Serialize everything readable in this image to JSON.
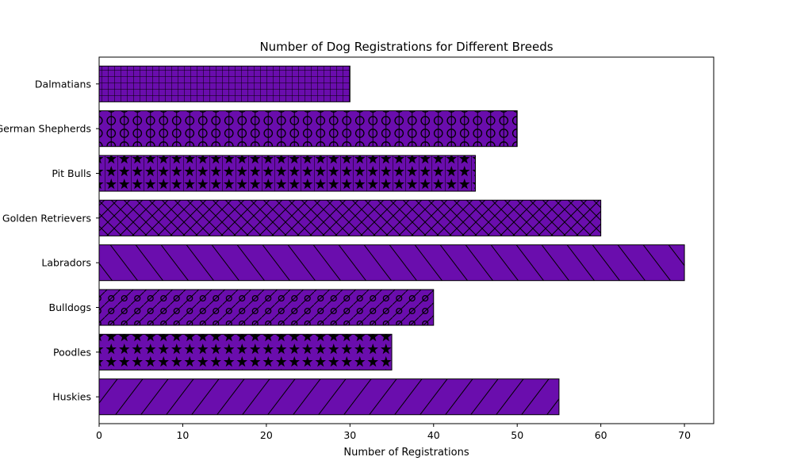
{
  "chart_data": {
    "type": "bar",
    "orientation": "horizontal",
    "title": "Number of Dog Registrations for Different Breeds",
    "xlabel": "Number of Registrations",
    "ylabel": "",
    "xlim": [
      0,
      73.5
    ],
    "xticks": [
      0,
      10,
      20,
      30,
      40,
      50,
      60,
      70
    ],
    "categories": [
      "Huskies",
      "Poodles",
      "Bulldogs",
      "Labradors",
      "Golden Retrievers",
      "Pit Bulls",
      "German Shepherds",
      "Dalmatians"
    ],
    "values": [
      55,
      35,
      40,
      70,
      60,
      45,
      50,
      30
    ],
    "hatches": [
      "diagonal-up",
      "stars",
      "circles-diagonal",
      "diagonal-down",
      "crosshatch",
      "stars-vertical",
      "circles-vertical",
      "grid"
    ],
    "bar_color": "#6a0dad",
    "edge_color": "#000000",
    "grid": false,
    "legend": "none"
  }
}
